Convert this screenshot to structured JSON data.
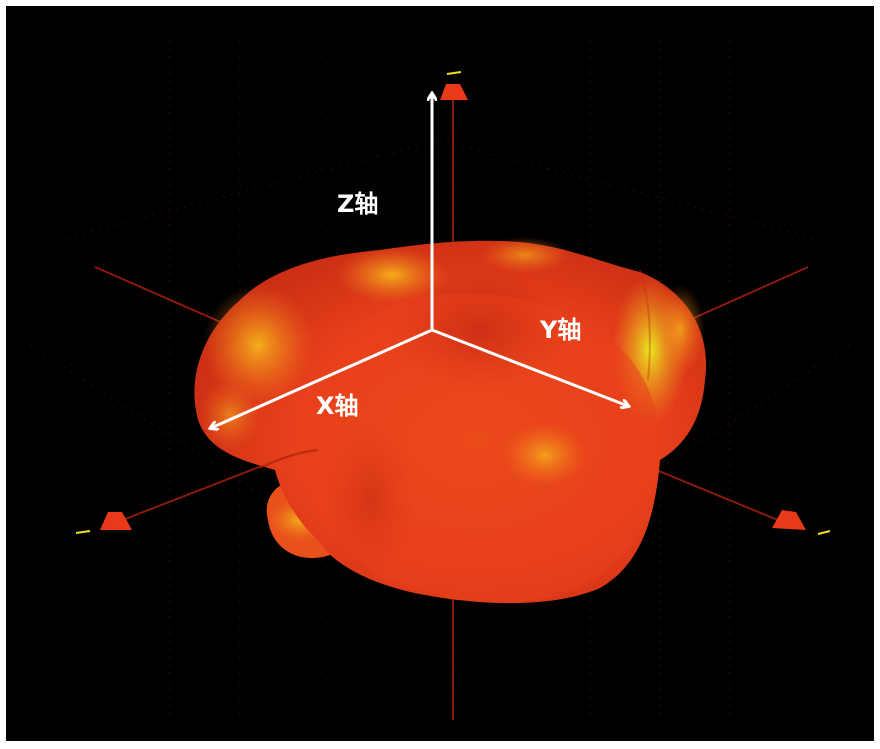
{
  "labels": {
    "z_axis": "Z轴",
    "y_axis": "Y轴",
    "x_axis": "X轴"
  },
  "colors": {
    "background": "#000000",
    "frame": "#ffffff",
    "axis_line": "#8a1a0a",
    "grid_dots": "#5a1408",
    "blob_main": "#e8401c",
    "blob_dark": "#b81e10",
    "blob_highlight": "#f4b21a",
    "blob_yellow": "#e8f020",
    "arrow": "#ffffff",
    "marker": "#e83a18",
    "marker_tick": "#f0e020"
  },
  "icons": {
    "radiation_pattern": "3d-radiation-pattern",
    "arrows": "axis-arrow-icon",
    "markers": "axis-end-marker-icon"
  }
}
